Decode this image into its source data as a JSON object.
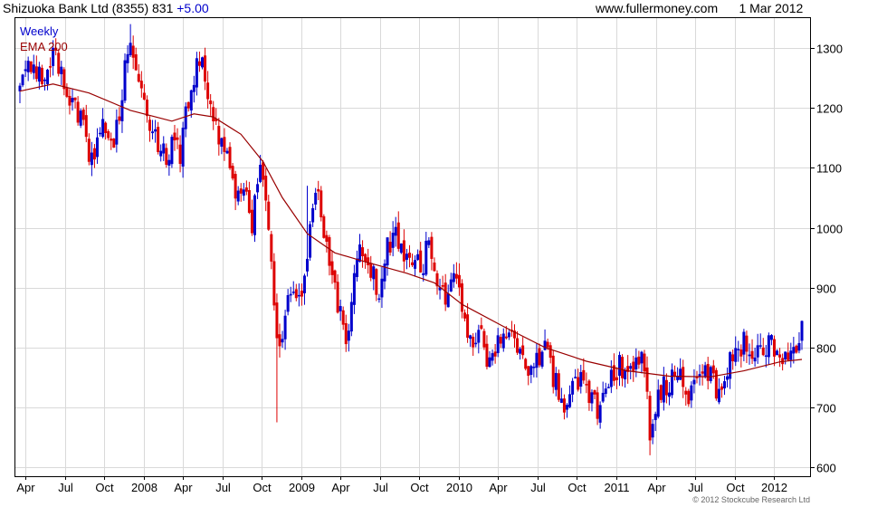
{
  "header": {
    "title": "Shizuoka Bank Ltd (8355) 831",
    "change": "+5.00",
    "site": "www.fullermoney.com",
    "date": "1 Mar 2012"
  },
  "footer": {
    "copyright": "© 2012 Stockcube Research Ltd"
  },
  "chart_data": {
    "type": "candlestick",
    "period": "Weekly",
    "grid": true,
    "ylim": [
      585,
      1350
    ],
    "y_ticks": [
      600,
      700,
      800,
      900,
      1000,
      1100,
      1200,
      1300
    ],
    "x_tick_labels": [
      "Apr",
      "Jul",
      "Oct",
      "2008",
      "Apr",
      "Jul",
      "Oct",
      "2009",
      "Apr",
      "Jul",
      "Oct",
      "2010",
      "Apr",
      "Jul",
      "Oct",
      "2011",
      "Apr",
      "Jul",
      "Oct",
      "2012"
    ],
    "legend": [
      {
        "name": "Weekly",
        "color": "#0000cc"
      },
      {
        "name": "EMA 200",
        "color": "#990000"
      }
    ],
    "colors": {
      "up": "#0000cc",
      "down": "#dd0000",
      "ema": "#990000",
      "grid": "#d9d9d9"
    },
    "ema200": [
      {
        "w": 0,
        "v": 1228
      },
      {
        "w": 12,
        "v": 1240
      },
      {
        "w": 25,
        "v": 1225
      },
      {
        "w": 40,
        "v": 1196
      },
      {
        "w": 55,
        "v": 1178
      },
      {
        "w": 63,
        "v": 1190
      },
      {
        "w": 70,
        "v": 1185
      },
      {
        "w": 80,
        "v": 1156
      },
      {
        "w": 88,
        "v": 1110
      },
      {
        "w": 95,
        "v": 1050
      },
      {
        "w": 104,
        "v": 990
      },
      {
        "w": 114,
        "v": 958
      },
      {
        "w": 125,
        "v": 943
      },
      {
        "w": 140,
        "v": 924
      },
      {
        "w": 150,
        "v": 908
      },
      {
        "w": 160,
        "v": 872
      },
      {
        "w": 175,
        "v": 835
      },
      {
        "w": 190,
        "v": 800
      },
      {
        "w": 205,
        "v": 777
      },
      {
        "w": 220,
        "v": 761
      },
      {
        "w": 235,
        "v": 752
      },
      {
        "w": 250,
        "v": 751
      },
      {
        "w": 262,
        "v": 761
      },
      {
        "w": 275,
        "v": 776
      },
      {
        "w": 283,
        "v": 780
      }
    ],
    "close_path": [
      {
        "w": 0,
        "v": 1220
      },
      {
        "w": 3,
        "v": 1285
      },
      {
        "w": 8,
        "v": 1260
      },
      {
        "w": 12,
        "v": 1290
      },
      {
        "w": 18,
        "v": 1215
      },
      {
        "w": 22,
        "v": 1180
      },
      {
        "w": 26,
        "v": 1110
      },
      {
        "w": 30,
        "v": 1175
      },
      {
        "w": 34,
        "v": 1130
      },
      {
        "w": 38,
        "v": 1260
      },
      {
        "w": 40,
        "v": 1320
      },
      {
        "w": 42,
        "v": 1250
      },
      {
        "w": 45,
        "v": 1195
      },
      {
        "w": 50,
        "v": 1145
      },
      {
        "w": 53,
        "v": 1110
      },
      {
        "w": 56,
        "v": 1145
      },
      {
        "w": 58,
        "v": 1120
      },
      {
        "w": 60,
        "v": 1185
      },
      {
        "w": 63,
        "v": 1255
      },
      {
        "w": 65,
        "v": 1290
      },
      {
        "w": 67,
        "v": 1250
      },
      {
        "w": 69,
        "v": 1200
      },
      {
        "w": 72,
        "v": 1160
      },
      {
        "w": 75,
        "v": 1110
      },
      {
        "w": 78,
        "v": 1070
      },
      {
        "w": 81,
        "v": 1060
      },
      {
        "w": 84,
        "v": 1010
      },
      {
        "w": 87,
        "v": 1100
      },
      {
        "w": 89,
        "v": 1060
      },
      {
        "w": 91,
        "v": 930
      },
      {
        "w": 93,
        "v": 800
      },
      {
        "w": 95,
        "v": 830
      },
      {
        "w": 98,
        "v": 900
      },
      {
        "w": 101,
        "v": 870
      },
      {
        "w": 104,
        "v": 960
      },
      {
        "w": 106,
        "v": 1020
      },
      {
        "w": 108,
        "v": 1060
      },
      {
        "w": 110,
        "v": 990
      },
      {
        "w": 113,
        "v": 920
      },
      {
        "w": 116,
        "v": 850
      },
      {
        "w": 118,
        "v": 790
      },
      {
        "w": 120,
        "v": 880
      },
      {
        "w": 123,
        "v": 960
      },
      {
        "w": 127,
        "v": 930
      },
      {
        "w": 130,
        "v": 890
      },
      {
        "w": 133,
        "v": 970
      },
      {
        "w": 136,
        "v": 980
      },
      {
        "w": 139,
        "v": 960
      },
      {
        "w": 142,
        "v": 950
      },
      {
        "w": 145,
        "v": 930
      },
      {
        "w": 148,
        "v": 975
      },
      {
        "w": 151,
        "v": 910
      },
      {
        "w": 154,
        "v": 880
      },
      {
        "w": 157,
        "v": 910
      },
      {
        "w": 160,
        "v": 870
      },
      {
        "w": 163,
        "v": 800
      },
      {
        "w": 166,
        "v": 830
      },
      {
        "w": 169,
        "v": 780
      },
      {
        "w": 172,
        "v": 795
      },
      {
        "w": 175,
        "v": 820
      },
      {
        "w": 178,
        "v": 830
      },
      {
        "w": 181,
        "v": 790
      },
      {
        "w": 184,
        "v": 760
      },
      {
        "w": 187,
        "v": 770
      },
      {
        "w": 190,
        "v": 800
      },
      {
        "w": 193,
        "v": 750
      },
      {
        "w": 196,
        "v": 715
      },
      {
        "w": 198,
        "v": 690
      },
      {
        "w": 200,
        "v": 730
      },
      {
        "w": 203,
        "v": 760
      },
      {
        "w": 206,
        "v": 720
      },
      {
        "w": 209,
        "v": 690
      },
      {
        "w": 212,
        "v": 720
      },
      {
        "w": 215,
        "v": 760
      },
      {
        "w": 218,
        "v": 770
      },
      {
        "w": 221,
        "v": 760
      },
      {
        "w": 224,
        "v": 790
      },
      {
        "w": 226,
        "v": 770
      },
      {
        "w": 228,
        "v": 660
      },
      {
        "w": 230,
        "v": 700
      },
      {
        "w": 233,
        "v": 730
      },
      {
        "w": 236,
        "v": 750
      },
      {
        "w": 239,
        "v": 750
      },
      {
        "w": 242,
        "v": 720
      },
      {
        "w": 245,
        "v": 735
      },
      {
        "w": 248,
        "v": 760
      },
      {
        "w": 251,
        "v": 740
      },
      {
        "w": 253,
        "v": 730
      },
      {
        "w": 256,
        "v": 770
      },
      {
        "w": 259,
        "v": 790
      },
      {
        "w": 262,
        "v": 810
      },
      {
        "w": 265,
        "v": 790
      },
      {
        "w": 268,
        "v": 800
      },
      {
        "w": 271,
        "v": 805
      },
      {
        "w": 274,
        "v": 800
      },
      {
        "w": 277,
        "v": 790
      },
      {
        "w": 279,
        "v": 785
      },
      {
        "w": 281,
        "v": 810
      },
      {
        "w": 283,
        "v": 831
      }
    ],
    "spikes": [
      {
        "w": 40,
        "high": 1340
      },
      {
        "w": 93,
        "low": 675
      },
      {
        "w": 104,
        "high": 1070
      },
      {
        "w": 228,
        "low": 620
      },
      {
        "w": 283,
        "high": 845
      }
    ]
  }
}
